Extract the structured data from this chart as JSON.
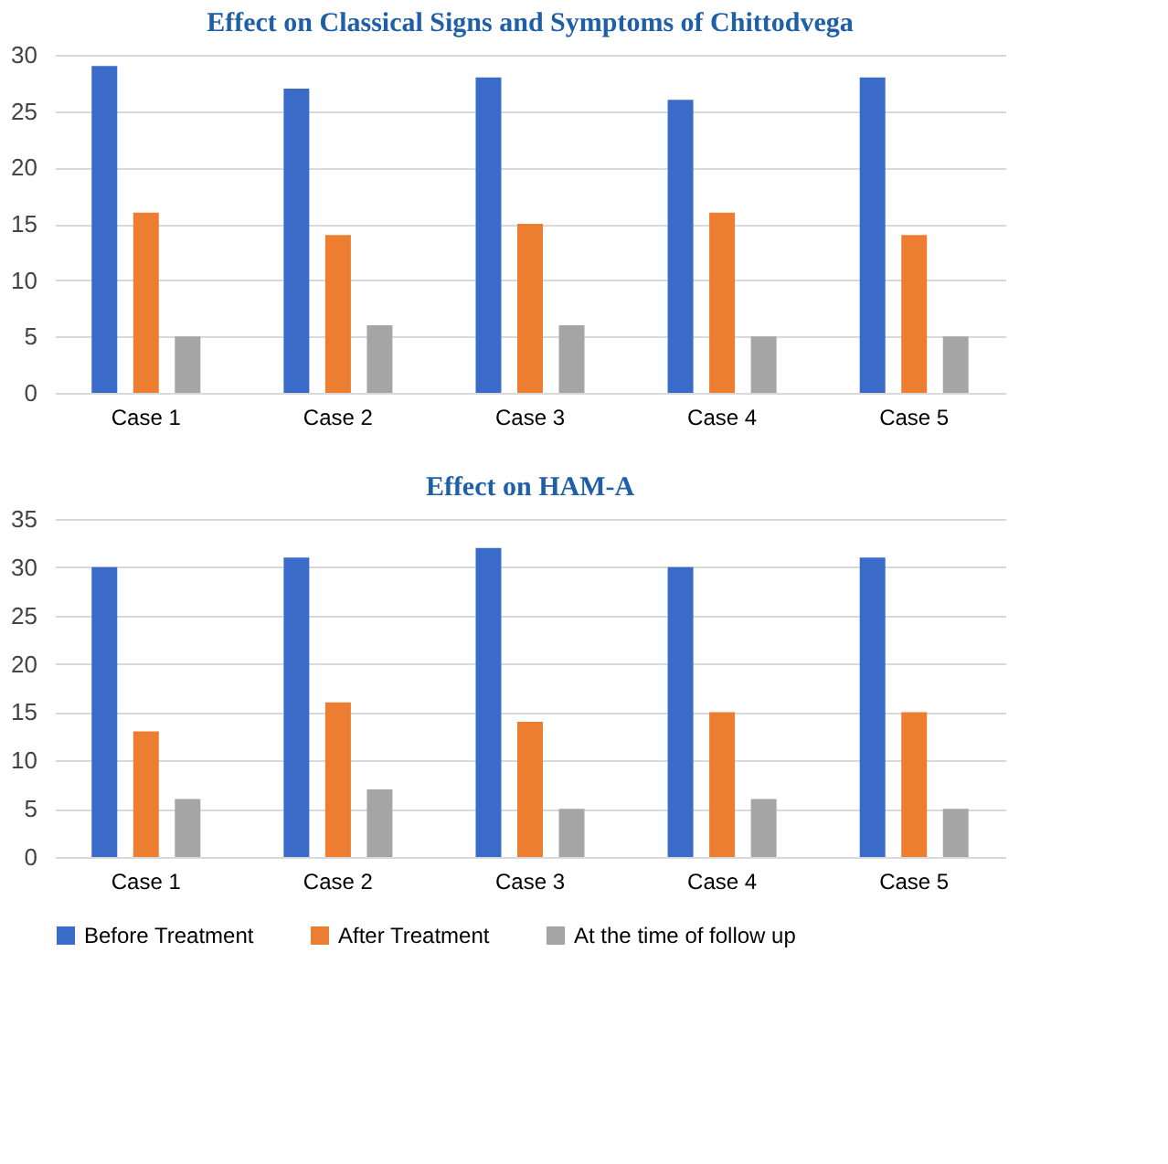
{
  "chart_data": [
    {
      "type": "bar",
      "title": "Effect on Classical Signs and Symptoms of Chittodvega",
      "categories": [
        "Case 1",
        "Case 2",
        "Case 3",
        "Case 4",
        "Case 5"
      ],
      "series": [
        {
          "name": "Before Treatment",
          "color": "#3a6bc9",
          "values": [
            29,
            27,
            28,
            26,
            28
          ]
        },
        {
          "name": "After Treatment",
          "color": "#ed7d31",
          "values": [
            16,
            14,
            15,
            16,
            14
          ]
        },
        {
          "name": "At the time of follow up",
          "color": "#a5a5a5",
          "values": [
            5,
            6,
            6,
            5,
            5
          ]
        }
      ],
      "ylim": [
        0,
        30
      ],
      "yticks": [
        0,
        5,
        10,
        15,
        20,
        25,
        30
      ],
      "grid": "y",
      "legend": "bottom"
    },
    {
      "type": "bar",
      "title": "Effect on HAM-A",
      "categories": [
        "Case 1",
        "Case 2",
        "Case 3",
        "Case 4",
        "Case 5"
      ],
      "series": [
        {
          "name": "Before Treatment",
          "color": "#3a6bc9",
          "values": [
            30,
            31,
            32,
            30,
            31
          ]
        },
        {
          "name": "After Treatment",
          "color": "#ed7d31",
          "values": [
            13,
            16,
            14,
            15,
            15
          ]
        },
        {
          "name": "At the time of follow up",
          "color": "#a5a5a5",
          "values": [
            6,
            7,
            5,
            6,
            5
          ]
        }
      ],
      "ylim": [
        0,
        35
      ],
      "yticks": [
        0,
        5,
        10,
        15,
        20,
        25,
        30,
        35
      ],
      "grid": "y",
      "legend": "bottom"
    }
  ]
}
